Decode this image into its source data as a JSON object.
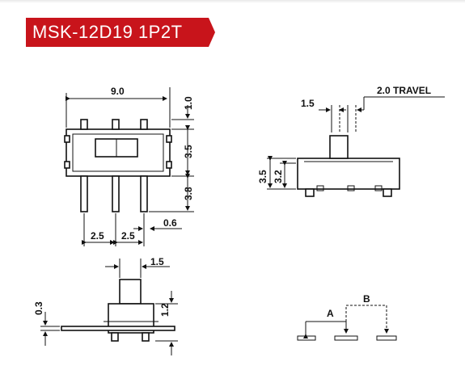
{
  "header": {
    "title": "MSK-12D19  1P2T"
  },
  "colors": {
    "banner": "#c8141b",
    "ink": "#111111",
    "background": "#ffffff"
  },
  "top_view": {
    "width": "9.0",
    "edge": "1.0",
    "body_height": "3.5",
    "pin_length": "3.8",
    "pitch_a": "2.5",
    "pitch_b": "2.5",
    "pin_width": "0.6"
  },
  "side_view": {
    "actuator": "1.5",
    "travel": "2.0 TRAVEL",
    "height_a": "3.5",
    "height_b": "3.2"
  },
  "front_view": {
    "actuator": "1.5",
    "base": "0.3",
    "lead": "1.2"
  },
  "schematic": {
    "pos_a": "A",
    "pos_b": "B"
  }
}
